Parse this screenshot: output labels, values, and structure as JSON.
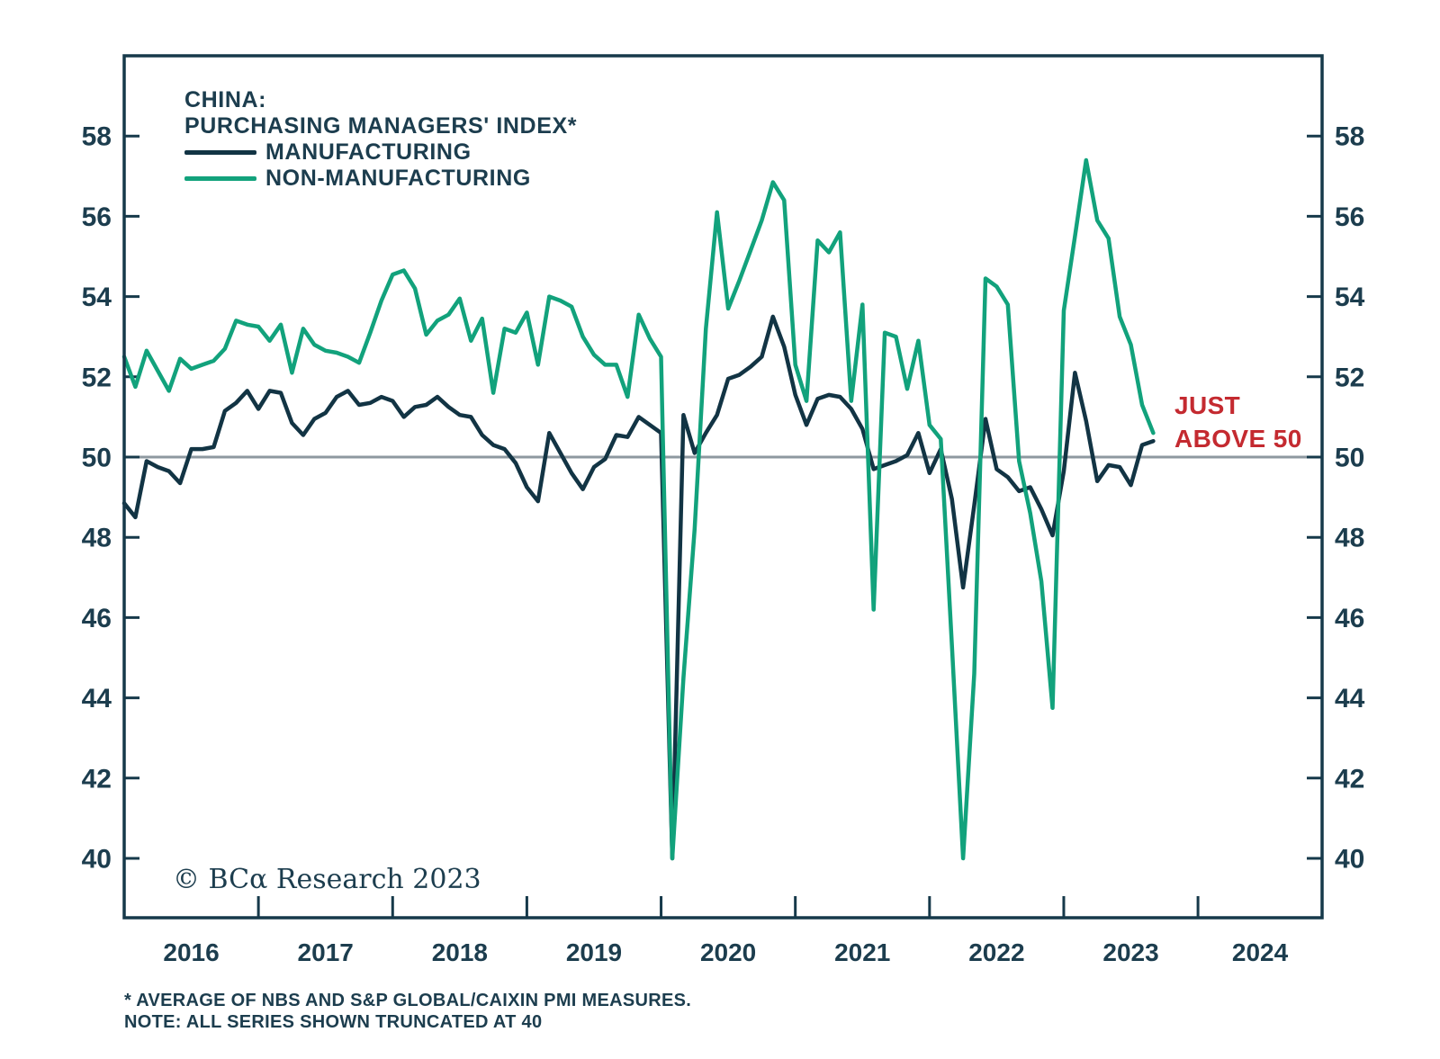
{
  "title": {
    "line1": "CHINA:",
    "line2": "PURCHASING MANAGERS' INDEX*"
  },
  "legend": [
    {
      "label": "MANUFACTURING",
      "color": "#123444"
    },
    {
      "label": "NON-MANUFACTURING",
      "color": "#12a27c"
    }
  ],
  "annotation": {
    "line1": "JUST",
    "line2": "ABOVE 50",
    "color": "#c42a30"
  },
  "copyright": "© BCα Research 2023",
  "footnotes": [
    "* AVERAGE OF NBS AND S&P GLOBAL/CAIXIN PMI MEASURES.",
    "NOTE: ALL SERIES SHOWN TRUNCATED AT 40"
  ],
  "colors": {
    "manufacturing": "#123444",
    "non_manufacturing": "#12a27c",
    "annotation_red": "#c42a30",
    "reference_gray": "#8e99a0",
    "axis_navy": "#16394a",
    "text_navy": "#1c3d4e"
  },
  "chart_data": {
    "type": "line",
    "frequency": "monthly",
    "x_start": "2016-01",
    "x_end": "2023-09",
    "x_axis_year_labels": [
      "2016",
      "2017",
      "2018",
      "2019",
      "2020",
      "2021",
      "2022",
      "2023",
      "2024"
    ],
    "y_ticks": [
      58,
      56,
      54,
      52,
      50,
      48,
      46,
      44,
      42,
      40
    ],
    "ylim": [
      38.5,
      60.0
    ],
    "reference_line": 50,
    "truncated_at": 40,
    "legend_position": "top-left",
    "grid": false,
    "series": [
      {
        "name": "MANUFACTURING",
        "color": "#123444",
        "values": [
          48.85,
          48.5,
          49.9,
          49.75,
          49.65,
          49.35,
          50.2,
          50.2,
          50.25,
          51.15,
          51.35,
          51.65,
          51.2,
          51.65,
          51.6,
          50.85,
          50.55,
          50.95,
          51.1,
          51.5,
          51.65,
          51.3,
          51.35,
          51.5,
          51.4,
          51.0,
          51.25,
          51.3,
          51.5,
          51.25,
          51.05,
          51.0,
          50.55,
          50.3,
          50.2,
          49.85,
          49.25,
          48.9,
          50.6,
          50.1,
          49.6,
          49.2,
          49.75,
          49.95,
          50.55,
          50.5,
          51.0,
          50.8,
          50.6,
          40.0,
          51.05,
          50.1,
          50.6,
          51.05,
          51.95,
          52.05,
          52.25,
          52.5,
          53.5,
          52.75,
          51.55,
          50.8,
          51.45,
          51.55,
          51.5,
          51.2,
          50.7,
          49.7,
          49.8,
          49.9,
          50.05,
          50.6,
          49.6,
          50.2,
          48.95,
          46.75,
          48.8,
          50.95,
          49.7,
          49.5,
          49.15,
          49.25,
          48.7,
          48.05,
          49.65,
          52.1,
          50.9,
          49.4,
          49.8,
          49.75,
          49.3,
          50.3,
          50.4
        ]
      },
      {
        "name": "NON-MANUFACTURING",
        "color": "#12a27c",
        "values": [
          52.5,
          51.75,
          52.65,
          52.15,
          51.65,
          52.45,
          52.2,
          52.3,
          52.4,
          52.7,
          53.4,
          53.3,
          53.25,
          52.9,
          53.3,
          52.1,
          53.2,
          52.8,
          52.65,
          52.6,
          52.5,
          52.35,
          53.1,
          53.9,
          54.55,
          54.65,
          54.2,
          53.05,
          53.4,
          53.55,
          53.95,
          52.9,
          53.45,
          51.6,
          53.2,
          53.1,
          53.6,
          52.3,
          54.0,
          53.9,
          53.75,
          53.0,
          52.55,
          52.3,
          52.3,
          51.5,
          53.55,
          52.95,
          52.5,
          40.0,
          44.5,
          48.2,
          53.2,
          56.1,
          53.7,
          54.4,
          55.15,
          55.9,
          56.85,
          56.4,
          52.3,
          51.4,
          55.4,
          55.1,
          55.6,
          51.4,
          53.8,
          46.2,
          53.1,
          53.0,
          51.7,
          52.9,
          50.8,
          50.45,
          45.3,
          40.0,
          44.6,
          54.45,
          54.25,
          53.8,
          49.9,
          48.6,
          46.9,
          43.75,
          53.65,
          55.5,
          57.4,
          55.9,
          55.45,
          53.5,
          52.8,
          51.3,
          50.6
        ]
      }
    ]
  }
}
